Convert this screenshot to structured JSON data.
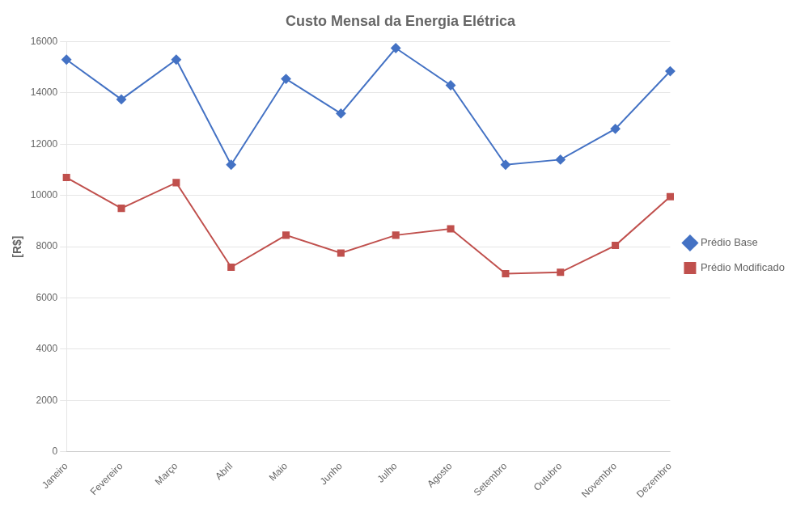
{
  "chart_data": {
    "type": "line",
    "title": "Custo Mensal da Energia Elétrica",
    "ylabel": "[R$]",
    "categories": [
      "Janeiro",
      "Fevereiro",
      "Março",
      "Abril",
      "Maio",
      "Junho",
      "Julho",
      "Agosto",
      "Setembro",
      "Outubro",
      "Novembro",
      "Dezembro"
    ],
    "series": [
      {
        "name": "Prédio Base",
        "color": "#4472C4",
        "marker": "diamond",
        "values": [
          15300,
          13750,
          15300,
          11200,
          14550,
          13200,
          15750,
          14300,
          11200,
          11400,
          12600,
          14850
        ]
      },
      {
        "name": "Prédio Modificado",
        "color": "#C0504D",
        "marker": "square",
        "values": [
          10700,
          9500,
          10500,
          7200,
          8450,
          7750,
          8450,
          8700,
          6950,
          7000,
          8050,
          9950
        ]
      }
    ],
    "ylim": [
      0,
      16000
    ],
    "yticks": [
      0,
      2000,
      4000,
      6000,
      8000,
      10000,
      12000,
      14000,
      16000
    ],
    "grid": true,
    "legend": "right"
  }
}
